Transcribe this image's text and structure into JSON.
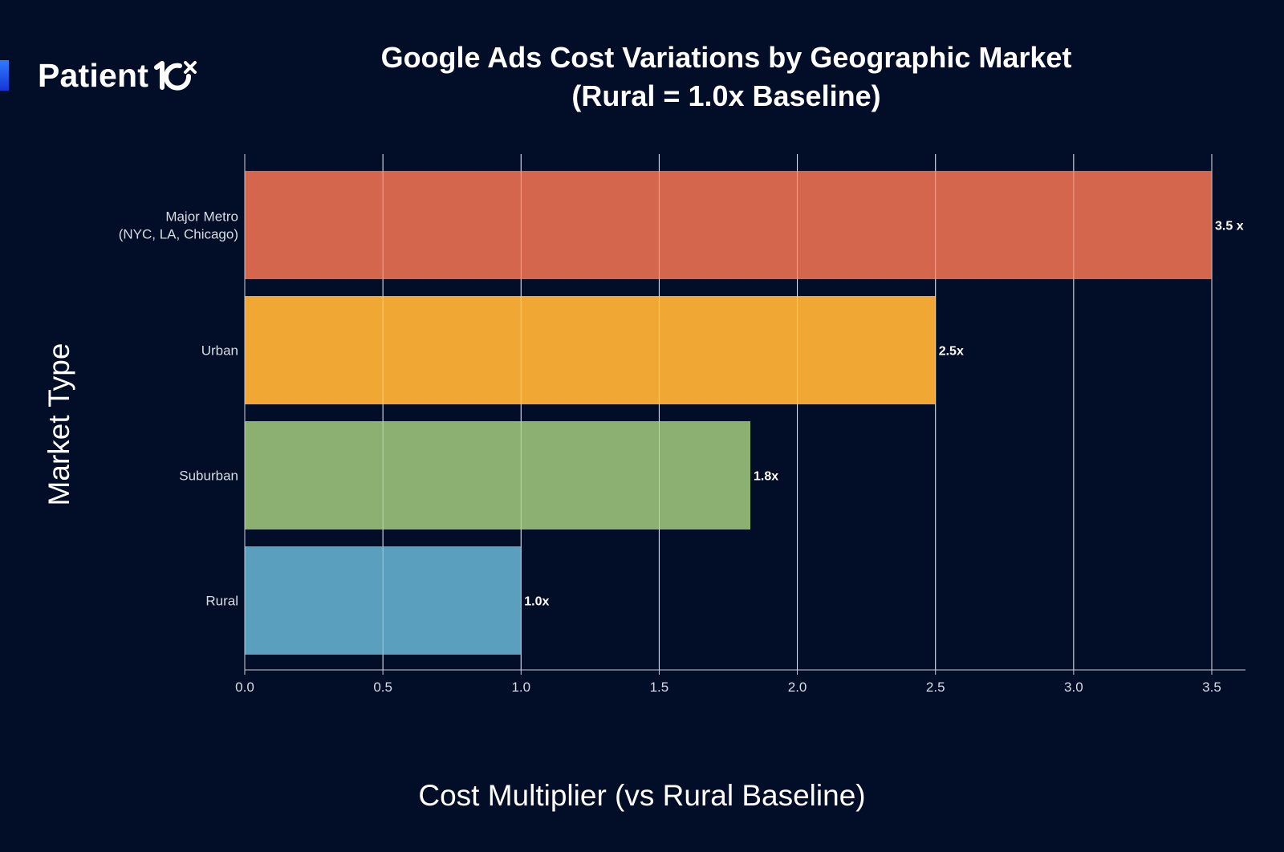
{
  "brand": {
    "name": "Patient",
    "icon": "patient-10x-logo-icon",
    "accent": "#1f5bff"
  },
  "background": "#020d28",
  "chart_data": {
    "type": "bar",
    "orientation": "horizontal",
    "title": "Google Ads Cost Variations by Geographic Market",
    "subtitle": "(Rural = 1.0x Baseline)",
    "xlabel": "Cost Multiplier (vs Rural Baseline)",
    "ylabel": "Market Type",
    "xlim": [
      0,
      3.5
    ],
    "xticks": [
      "0.0",
      "0.5",
      "1.0",
      "1.5",
      "2.0",
      "2.5",
      "3.0",
      "3.5"
    ],
    "grid": true,
    "categories": [
      {
        "label": [
          "Major Metro",
          "(NYC, LA, Chicago)"
        ],
        "value": 3.5,
        "data_label": "3.5 x",
        "color": "#d4664d"
      },
      {
        "label": [
          "Urban"
        ],
        "value": 2.5,
        "data_label": "2.5x",
        "color": "#f1a734"
      },
      {
        "label": [
          "Suburban"
        ],
        "value": 1.83,
        "data_label": "1.8x",
        "color": "#8caf72"
      },
      {
        "label": [
          "Rural"
        ],
        "value": 1.0,
        "data_label": "1.0x",
        "color": "#5a9fbe"
      }
    ]
  }
}
